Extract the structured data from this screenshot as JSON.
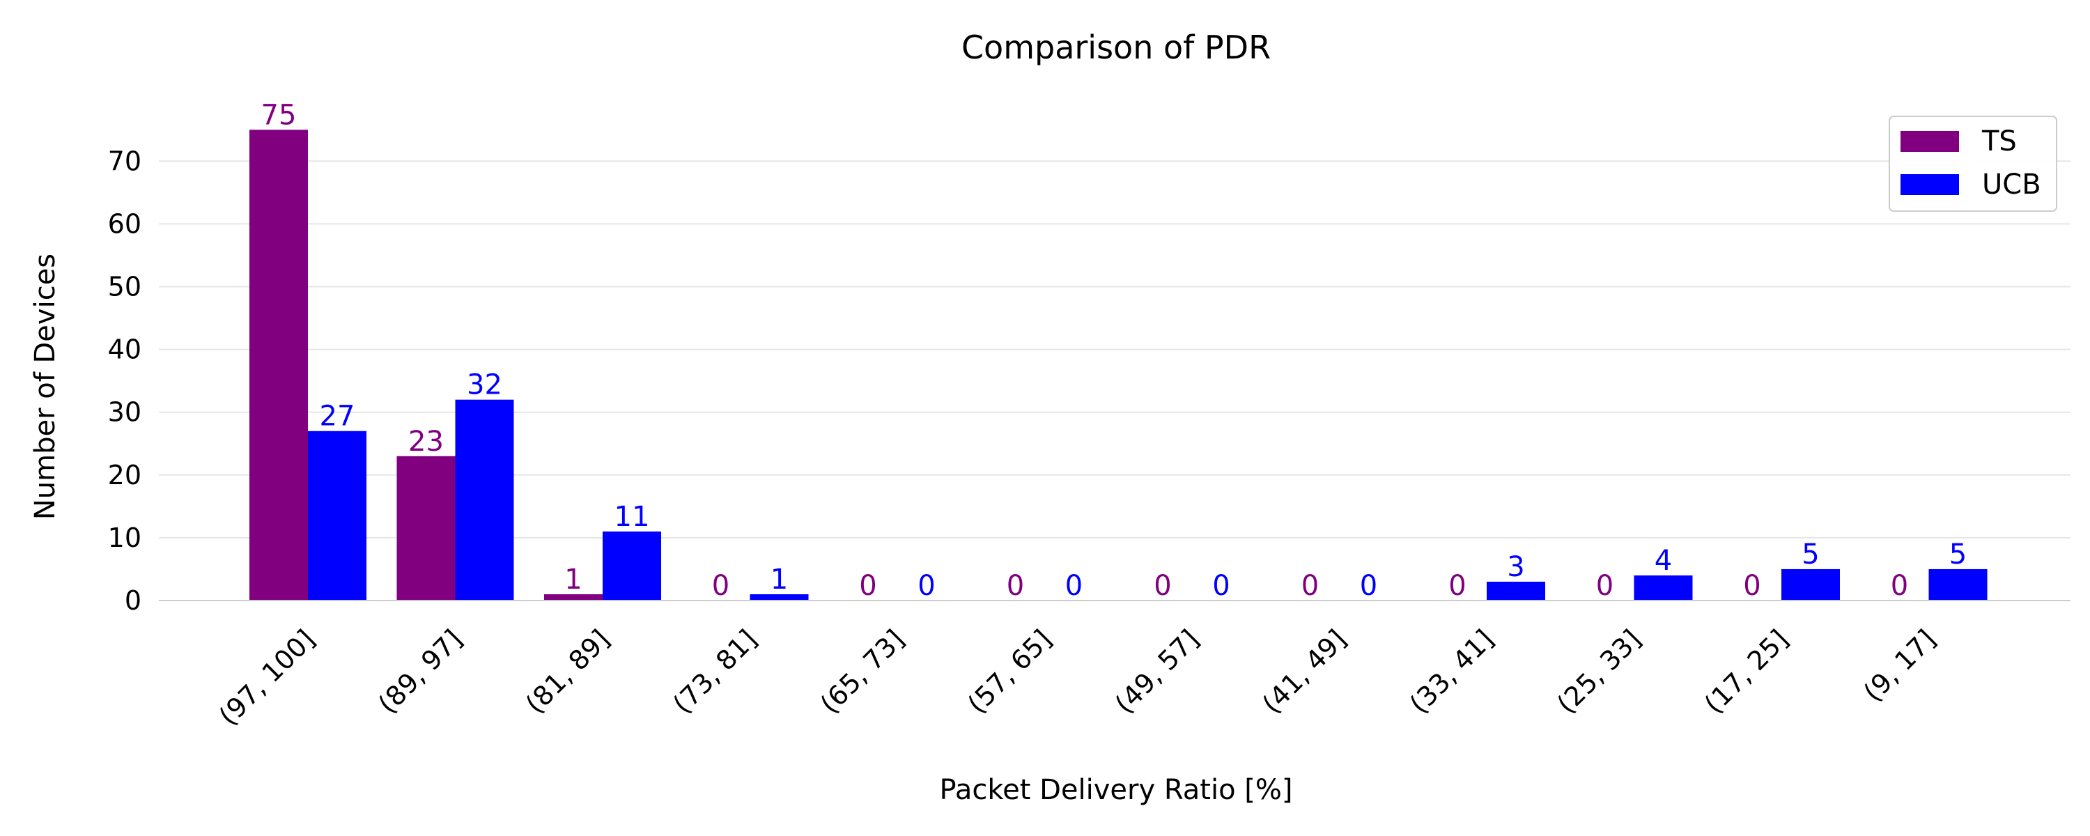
{
  "chart_data": {
    "type": "bar",
    "title": "Comparison of PDR",
    "xlabel": "Packet Delivery Ratio [%]",
    "ylabel": "Number of Devices",
    "categories": [
      "(97, 100]",
      "(89, 97]",
      "(81, 89]",
      "(73, 81]",
      "(65, 73]",
      "(57, 65]",
      "(49, 57]",
      "(41, 49]",
      "(33, 41]",
      "(25, 33]",
      "(17, 25]",
      "(9, 17]"
    ],
    "series": [
      {
        "name": "TS",
        "color": "#800080",
        "values": [
          75,
          23,
          1,
          0,
          0,
          0,
          0,
          0,
          0,
          0,
          0,
          0
        ]
      },
      {
        "name": "UCB",
        "color": "#0000ff",
        "values": [
          27,
          32,
          11,
          1,
          0,
          0,
          0,
          0,
          3,
          4,
          5,
          5
        ]
      }
    ],
    "ylim": [
      0,
      80
    ],
    "yticks": [
      0,
      10,
      20,
      30,
      40,
      50,
      60,
      70
    ],
    "grid": "horizontal",
    "legend_position": "top-right",
    "data_labels": true
  }
}
